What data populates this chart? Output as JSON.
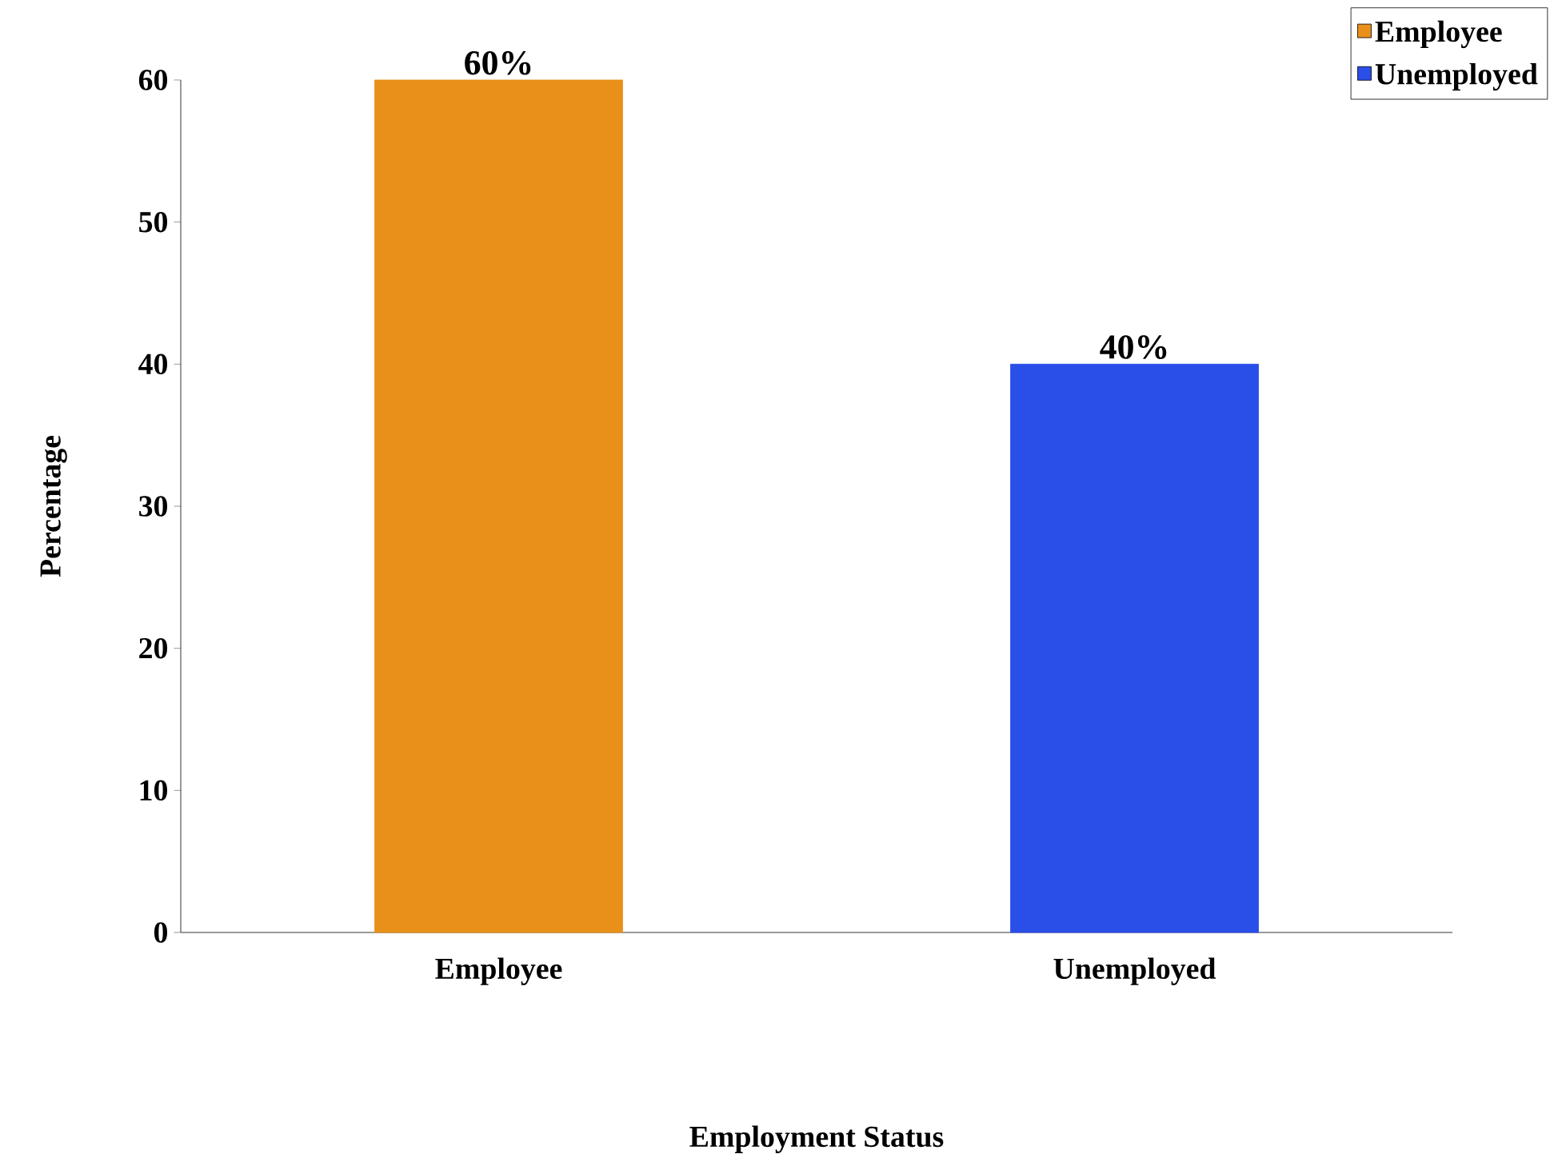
{
  "chart_data": {
    "type": "bar",
    "xlabel": "Employment Status",
    "ylabel": "Percentage",
    "categories": [
      "Employee",
      "Unemployed"
    ],
    "series": [
      {
        "name": "Employee",
        "color": "#e8901a",
        "values": [
          60,
          null
        ],
        "value_labels": [
          "60%",
          null
        ]
      },
      {
        "name": "Unemployed",
        "color": "#2a4ee8",
        "values": [
          null,
          40
        ],
        "value_labels": [
          null,
          "40%"
        ]
      }
    ],
    "ylim": [
      0,
      60
    ],
    "yticks": [
      0,
      10,
      20,
      30,
      40,
      50,
      60
    ],
    "grid": false,
    "legend": "top right"
  }
}
